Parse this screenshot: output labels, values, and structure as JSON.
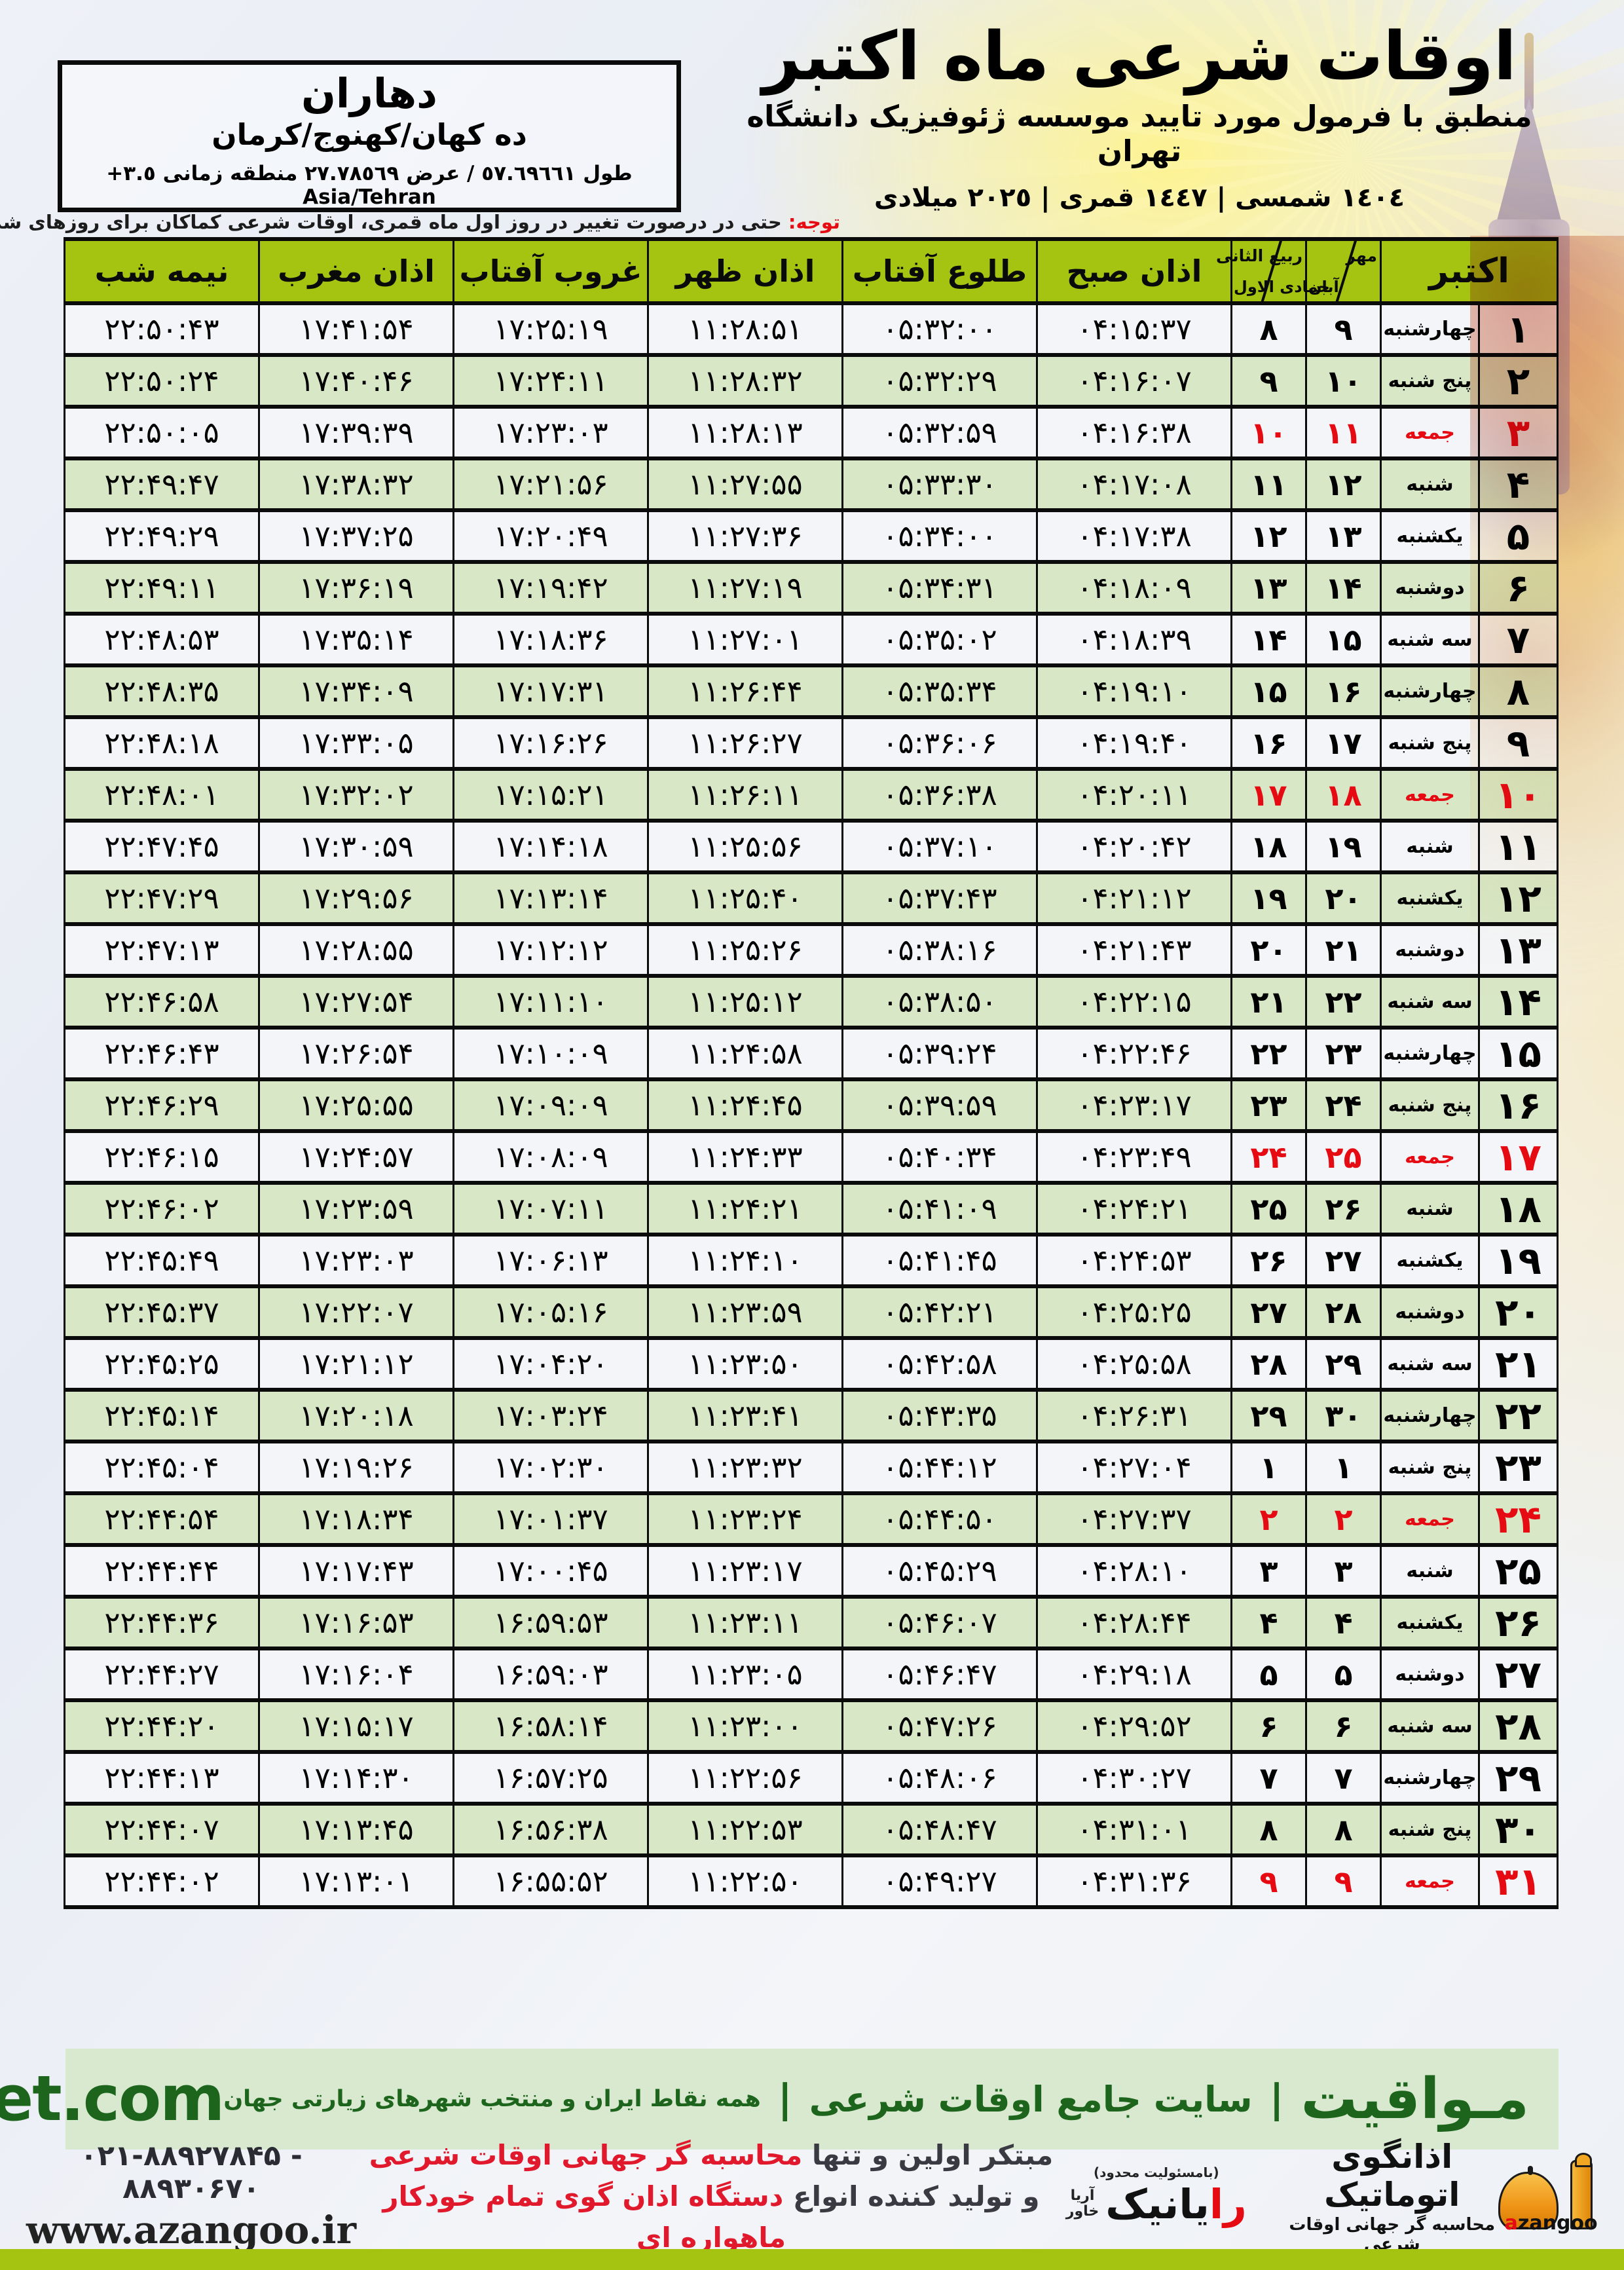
{
  "header": {
    "title": "اوقات شرعی ماه اکتبر",
    "subtitle": "منطبق با فرمول مورد تایید موسسه ژئوفیزیک دانشگاه تهران",
    "calendar_line": "١٤٠٤ شمسی | ١٤٤٧ قمری | ٢٠٢٥ میلادی",
    "location": {
      "name": "دهاران",
      "region": "ده کهان/کهنوج/کرمان",
      "coordinates": "طول ٥٧.٦٩٦٦١ / عرض ٢٧.٧٨٥٦٩ منطقه زمانی ٣.٥+ Asia/Tehran"
    },
    "note_label": "توجه:",
    "note_text": " حتی در درصورت تغییر در روز اول ماه قمری، اوقات شرعی کماکان برای روزهای شمسی و میلادی معتبر است."
  },
  "table": {
    "columns": {
      "october": "اکتبر",
      "jalali_top": "مهر",
      "jalali_bottom": "آبان",
      "hijri_top": "ربیع الثانی",
      "hijri_bottom": "جمادی الاول",
      "fajr": "اذان صبح",
      "sunrise": "طلوع آفتاب",
      "dhuhr": "اذان ظهر",
      "sunset": "غروب آفتاب",
      "maghrib": "اذان مغرب",
      "midnight": "نیمه شب"
    },
    "rows": [
      {
        "day": "۱",
        "weekday": "چهارشنبه",
        "jalali": "۹",
        "hijri": "۸",
        "fajr": "۰۴:۱۵:۳۷",
        "sunrise": "۰۵:۳۲:۰۰",
        "dhuhr": "۱۱:۲۸:۵۱",
        "sunset": "۱۷:۲۵:۱۹",
        "maghrib": "۱۷:۴۱:۵۴",
        "midnight": "۲۲:۵۰:۴۳",
        "friday": false
      },
      {
        "day": "۲",
        "weekday": "پنج شنبه",
        "jalali": "۱۰",
        "hijri": "۹",
        "fajr": "۰۴:۱۶:۰۷",
        "sunrise": "۰۵:۳۲:۲۹",
        "dhuhr": "۱۱:۲۸:۳۲",
        "sunset": "۱۷:۲۴:۱۱",
        "maghrib": "۱۷:۴۰:۴۶",
        "midnight": "۲۲:۵۰:۲۴",
        "friday": false
      },
      {
        "day": "۳",
        "weekday": "جمعه",
        "jalali": "۱۱",
        "hijri": "۱۰",
        "fajr": "۰۴:۱۶:۳۸",
        "sunrise": "۰۵:۳۲:۵۹",
        "dhuhr": "۱۱:۲۸:۱۳",
        "sunset": "۱۷:۲۳:۰۳",
        "maghrib": "۱۷:۳۹:۳۹",
        "midnight": "۲۲:۵۰:۰۵",
        "friday": true
      },
      {
        "day": "۴",
        "weekday": "شنبه",
        "jalali": "۱۲",
        "hijri": "۱۱",
        "fajr": "۰۴:۱۷:۰۸",
        "sunrise": "۰۵:۳۳:۳۰",
        "dhuhr": "۱۱:۲۷:۵۵",
        "sunset": "۱۷:۲۱:۵۶",
        "maghrib": "۱۷:۳۸:۳۲",
        "midnight": "۲۲:۴۹:۴۷",
        "friday": false
      },
      {
        "day": "۵",
        "weekday": "یکشنبه",
        "jalali": "۱۳",
        "hijri": "۱۲",
        "fajr": "۰۴:۱۷:۳۸",
        "sunrise": "۰۵:۳۴:۰۰",
        "dhuhr": "۱۱:۲۷:۳۶",
        "sunset": "۱۷:۲۰:۴۹",
        "maghrib": "۱۷:۳۷:۲۵",
        "midnight": "۲۲:۴۹:۲۹",
        "friday": false
      },
      {
        "day": "۶",
        "weekday": "دوشنبه",
        "jalali": "۱۴",
        "hijri": "۱۳",
        "fajr": "۰۴:۱۸:۰۹",
        "sunrise": "۰۵:۳۴:۳۱",
        "dhuhr": "۱۱:۲۷:۱۹",
        "sunset": "۱۷:۱۹:۴۲",
        "maghrib": "۱۷:۳۶:۱۹",
        "midnight": "۲۲:۴۹:۱۱",
        "friday": false
      },
      {
        "day": "۷",
        "weekday": "سه شنبه",
        "jalali": "۱۵",
        "hijri": "۱۴",
        "fajr": "۰۴:۱۸:۳۹",
        "sunrise": "۰۵:۳۵:۰۲",
        "dhuhr": "۱۱:۲۷:۰۱",
        "sunset": "۱۷:۱۸:۳۶",
        "maghrib": "۱۷:۳۵:۱۴",
        "midnight": "۲۲:۴۸:۵۳",
        "friday": false
      },
      {
        "day": "۸",
        "weekday": "چهارشنبه",
        "jalali": "۱۶",
        "hijri": "۱۵",
        "fajr": "۰۴:۱۹:۱۰",
        "sunrise": "۰۵:۳۵:۳۴",
        "dhuhr": "۱۱:۲۶:۴۴",
        "sunset": "۱۷:۱۷:۳۱",
        "maghrib": "۱۷:۳۴:۰۹",
        "midnight": "۲۲:۴۸:۳۵",
        "friday": false
      },
      {
        "day": "۹",
        "weekday": "پنج شنبه",
        "jalali": "۱۷",
        "hijri": "۱۶",
        "fajr": "۰۴:۱۹:۴۰",
        "sunrise": "۰۵:۳۶:۰۶",
        "dhuhr": "۱۱:۲۶:۲۷",
        "sunset": "۱۷:۱۶:۲۶",
        "maghrib": "۱۷:۳۳:۰۵",
        "midnight": "۲۲:۴۸:۱۸",
        "friday": false
      },
      {
        "day": "۱۰",
        "weekday": "جمعه",
        "jalali": "۱۸",
        "hijri": "۱۷",
        "fajr": "۰۴:۲۰:۱۱",
        "sunrise": "۰۵:۳۶:۳۸",
        "dhuhr": "۱۱:۲۶:۱۱",
        "sunset": "۱۷:۱۵:۲۱",
        "maghrib": "۱۷:۳۲:۰۲",
        "midnight": "۲۲:۴۸:۰۱",
        "friday": true
      },
      {
        "day": "۱۱",
        "weekday": "شنبه",
        "jalali": "۱۹",
        "hijri": "۱۸",
        "fajr": "۰۴:۲۰:۴۲",
        "sunrise": "۰۵:۳۷:۱۰",
        "dhuhr": "۱۱:۲۵:۵۶",
        "sunset": "۱۷:۱۴:۱۸",
        "maghrib": "۱۷:۳۰:۵۹",
        "midnight": "۲۲:۴۷:۴۵",
        "friday": false
      },
      {
        "day": "۱۲",
        "weekday": "یکشنبه",
        "jalali": "۲۰",
        "hijri": "۱۹",
        "fajr": "۰۴:۲۱:۱۲",
        "sunrise": "۰۵:۳۷:۴۳",
        "dhuhr": "۱۱:۲۵:۴۰",
        "sunset": "۱۷:۱۳:۱۴",
        "maghrib": "۱۷:۲۹:۵۶",
        "midnight": "۲۲:۴۷:۲۹",
        "friday": false
      },
      {
        "day": "۱۳",
        "weekday": "دوشنبه",
        "jalali": "۲۱",
        "hijri": "۲۰",
        "fajr": "۰۴:۲۱:۴۳",
        "sunrise": "۰۵:۳۸:۱۶",
        "dhuhr": "۱۱:۲۵:۲۶",
        "sunset": "۱۷:۱۲:۱۲",
        "maghrib": "۱۷:۲۸:۵۵",
        "midnight": "۲۲:۴۷:۱۳",
        "friday": false
      },
      {
        "day": "۱۴",
        "weekday": "سه شنبه",
        "jalali": "۲۲",
        "hijri": "۲۱",
        "fajr": "۰۴:۲۲:۱۵",
        "sunrise": "۰۵:۳۸:۵۰",
        "dhuhr": "۱۱:۲۵:۱۲",
        "sunset": "۱۷:۱۱:۱۰",
        "maghrib": "۱۷:۲۷:۵۴",
        "midnight": "۲۲:۴۶:۵۸",
        "friday": false
      },
      {
        "day": "۱۵",
        "weekday": "چهارشنبه",
        "jalali": "۲۳",
        "hijri": "۲۲",
        "fajr": "۰۴:۲۲:۴۶",
        "sunrise": "۰۵:۳۹:۲۴",
        "dhuhr": "۱۱:۲۴:۵۸",
        "sunset": "۱۷:۱۰:۰۹",
        "maghrib": "۱۷:۲۶:۵۴",
        "midnight": "۲۲:۴۶:۴۳",
        "friday": false
      },
      {
        "day": "۱۶",
        "weekday": "پنج شنبه",
        "jalali": "۲۴",
        "hijri": "۲۳",
        "fajr": "۰۴:۲۳:۱۷",
        "sunrise": "۰۵:۳۹:۵۹",
        "dhuhr": "۱۱:۲۴:۴۵",
        "sunset": "۱۷:۰۹:۰۹",
        "maghrib": "۱۷:۲۵:۵۵",
        "midnight": "۲۲:۴۶:۲۹",
        "friday": false
      },
      {
        "day": "۱۷",
        "weekday": "جمعه",
        "jalali": "۲۵",
        "hijri": "۲۴",
        "fajr": "۰۴:۲۳:۴۹",
        "sunrise": "۰۵:۴۰:۳۴",
        "dhuhr": "۱۱:۲۴:۳۳",
        "sunset": "۱۷:۰۸:۰۹",
        "maghrib": "۱۷:۲۴:۵۷",
        "midnight": "۲۲:۴۶:۱۵",
        "friday": true
      },
      {
        "day": "۱۸",
        "weekday": "شنبه",
        "jalali": "۲۶",
        "hijri": "۲۵",
        "fajr": "۰۴:۲۴:۲۱",
        "sunrise": "۰۵:۴۱:۰۹",
        "dhuhr": "۱۱:۲۴:۲۱",
        "sunset": "۱۷:۰۷:۱۱",
        "maghrib": "۱۷:۲۳:۵۹",
        "midnight": "۲۲:۴۶:۰۲",
        "friday": false
      },
      {
        "day": "۱۹",
        "weekday": "یکشنبه",
        "jalali": "۲۷",
        "hijri": "۲۶",
        "fajr": "۰۴:۲۴:۵۳",
        "sunrise": "۰۵:۴۱:۴۵",
        "dhuhr": "۱۱:۲۴:۱۰",
        "sunset": "۱۷:۰۶:۱۳",
        "maghrib": "۱۷:۲۳:۰۳",
        "midnight": "۲۲:۴۵:۴۹",
        "friday": false
      },
      {
        "day": "۲۰",
        "weekday": "دوشنبه",
        "jalali": "۲۸",
        "hijri": "۲۷",
        "fajr": "۰۴:۲۵:۲۵",
        "sunrise": "۰۵:۴۲:۲۱",
        "dhuhr": "۱۱:۲۳:۵۹",
        "sunset": "۱۷:۰۵:۱۶",
        "maghrib": "۱۷:۲۲:۰۷",
        "midnight": "۲۲:۴۵:۳۷",
        "friday": false
      },
      {
        "day": "۲۱",
        "weekday": "سه شنبه",
        "jalali": "۲۹",
        "hijri": "۲۸",
        "fajr": "۰۴:۲۵:۵۸",
        "sunrise": "۰۵:۴۲:۵۸",
        "dhuhr": "۱۱:۲۳:۵۰",
        "sunset": "۱۷:۰۴:۲۰",
        "maghrib": "۱۷:۲۱:۱۲",
        "midnight": "۲۲:۴۵:۲۵",
        "friday": false
      },
      {
        "day": "۲۲",
        "weekday": "چهارشنبه",
        "jalali": "۳۰",
        "hijri": "۲۹",
        "fajr": "۰۴:۲۶:۳۱",
        "sunrise": "۰۵:۴۳:۳۵",
        "dhuhr": "۱۱:۲۳:۴۱",
        "sunset": "۱۷:۰۳:۲۴",
        "maghrib": "۱۷:۲۰:۱۸",
        "midnight": "۲۲:۴۵:۱۴",
        "friday": false
      },
      {
        "day": "۲۳",
        "weekday": "پنج شنبه",
        "jalali": "۱",
        "hijri": "۱",
        "fajr": "۰۴:۲۷:۰۴",
        "sunrise": "۰۵:۴۴:۱۲",
        "dhuhr": "۱۱:۲۳:۳۲",
        "sunset": "۱۷:۰۲:۳۰",
        "maghrib": "۱۷:۱۹:۲۶",
        "midnight": "۲۲:۴۵:۰۴",
        "friday": false
      },
      {
        "day": "۲۴",
        "weekday": "جمعه",
        "jalali": "۲",
        "hijri": "۲",
        "fajr": "۰۴:۲۷:۳۷",
        "sunrise": "۰۵:۴۴:۵۰",
        "dhuhr": "۱۱:۲۳:۲۴",
        "sunset": "۱۷:۰۱:۳۷",
        "maghrib": "۱۷:۱۸:۳۴",
        "midnight": "۲۲:۴۴:۵۴",
        "friday": true
      },
      {
        "day": "۲۵",
        "weekday": "شنبه",
        "jalali": "۳",
        "hijri": "۳",
        "fajr": "۰۴:۲۸:۱۰",
        "sunrise": "۰۵:۴۵:۲۹",
        "dhuhr": "۱۱:۲۳:۱۷",
        "sunset": "۱۷:۰۰:۴۵",
        "maghrib": "۱۷:۱۷:۴۳",
        "midnight": "۲۲:۴۴:۴۴",
        "friday": false
      },
      {
        "day": "۲۶",
        "weekday": "یکشنبه",
        "jalali": "۴",
        "hijri": "۴",
        "fajr": "۰۴:۲۸:۴۴",
        "sunrise": "۰۵:۴۶:۰۷",
        "dhuhr": "۱۱:۲۳:۱۱",
        "sunset": "۱۶:۵۹:۵۳",
        "maghrib": "۱۷:۱۶:۵۳",
        "midnight": "۲۲:۴۴:۳۶",
        "friday": false
      },
      {
        "day": "۲۷",
        "weekday": "دوشنبه",
        "jalali": "۵",
        "hijri": "۵",
        "fajr": "۰۴:۲۹:۱۸",
        "sunrise": "۰۵:۴۶:۴۷",
        "dhuhr": "۱۱:۲۳:۰۵",
        "sunset": "۱۶:۵۹:۰۳",
        "maghrib": "۱۷:۱۶:۰۴",
        "midnight": "۲۲:۴۴:۲۷",
        "friday": false
      },
      {
        "day": "۲۸",
        "weekday": "سه شنبه",
        "jalali": "۶",
        "hijri": "۶",
        "fajr": "۰۴:۲۹:۵۲",
        "sunrise": "۰۵:۴۷:۲۶",
        "dhuhr": "۱۱:۲۳:۰۰",
        "sunset": "۱۶:۵۸:۱۴",
        "maghrib": "۱۷:۱۵:۱۷",
        "midnight": "۲۲:۴۴:۲۰",
        "friday": false
      },
      {
        "day": "۲۹",
        "weekday": "چهارشنبه",
        "jalali": "۷",
        "hijri": "۷",
        "fajr": "۰۴:۳۰:۲۷",
        "sunrise": "۰۵:۴۸:۰۶",
        "dhuhr": "۱۱:۲۲:۵۶",
        "sunset": "۱۶:۵۷:۲۵",
        "maghrib": "۱۷:۱۴:۳۰",
        "midnight": "۲۲:۴۴:۱۳",
        "friday": false
      },
      {
        "day": "۳۰",
        "weekday": "پنج شنبه",
        "jalali": "۸",
        "hijri": "۸",
        "fajr": "۰۴:۳۱:۰۱",
        "sunrise": "۰۵:۴۸:۴۷",
        "dhuhr": "۱۱:۲۲:۵۳",
        "sunset": "۱۶:۵۶:۳۸",
        "maghrib": "۱۷:۱۳:۴۵",
        "midnight": "۲۲:۴۴:۰۷",
        "friday": false
      },
      {
        "day": "۳۱",
        "weekday": "جمعه",
        "jalali": "۹",
        "hijri": "۹",
        "fajr": "۰۴:۳۱:۳۶",
        "sunrise": "۰۵:۴۹:۲۷",
        "dhuhr": "۱۱:۲۲:۵۰",
        "sunset": "۱۶:۵۵:۵۲",
        "maghrib": "۱۷:۱۳:۰۱",
        "midnight": "۲۲:۴۴:۰۲",
        "friday": true
      }
    ]
  },
  "footer": {
    "site_en": "mavaqeet.com",
    "brand_fa": "مـواقیت",
    "separator": "|",
    "tagline1": "سایت جامع اوقات شرعی",
    "tagline2": "همه نقاط ایران و منتخب شهرهای زیارتی جهان",
    "phone": "۰۲۱-۸۸۹۲۷۸۴۵ - ۸۸۹۳۰۶۷۰",
    "website": "www.azangoo.ir",
    "promo_line1_dark": "مبتکر اولین و تنها",
    "promo_line1_red": "محاسبه گر جهانی اوقات شرعی",
    "promo_line2_dark": "و تولید کننده انواع",
    "promo_line2_red": "دستگاه اذان گوی تمام خودکار ماهواره ای",
    "azangoo_logo": {
      "title": "اذانگوی اتوماتیک",
      "subtitle": "محاسبه گر جهانی اوقات شرعی",
      "wordmark_a": "a",
      "wordmark_rest": "zangoo"
    },
    "rayanik_logo": {
      "sub": "(بامسئولیت محدود)",
      "name_red": "را",
      "name_rest": "یانیک",
      "side_top": "آریا",
      "side_bottom": "خاور"
    }
  },
  "colors": {
    "table_header_green": "#a4c411",
    "row_green": "#d8e7c6",
    "friday_red": "#e60b13",
    "footer_band_bg": "#d9e9d0",
    "footer_band_text": "#1d651d",
    "bottom_bar_green": "#a4c411"
  }
}
